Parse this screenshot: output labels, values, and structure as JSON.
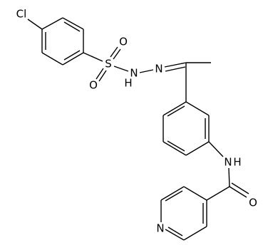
{
  "nodes": [
    {
      "label": "Cl"
    },
    {
      "label": "S"
    },
    {
      "label": "O"
    },
    {
      "label": "O"
    },
    {
      "label": "N"
    },
    {
      "label": "H"
    },
    {
      "label": "N"
    },
    {
      "label": "N"
    },
    {
      "label": "H"
    },
    {
      "label": "O"
    },
    {
      "label": "N"
    }
  ]
}
